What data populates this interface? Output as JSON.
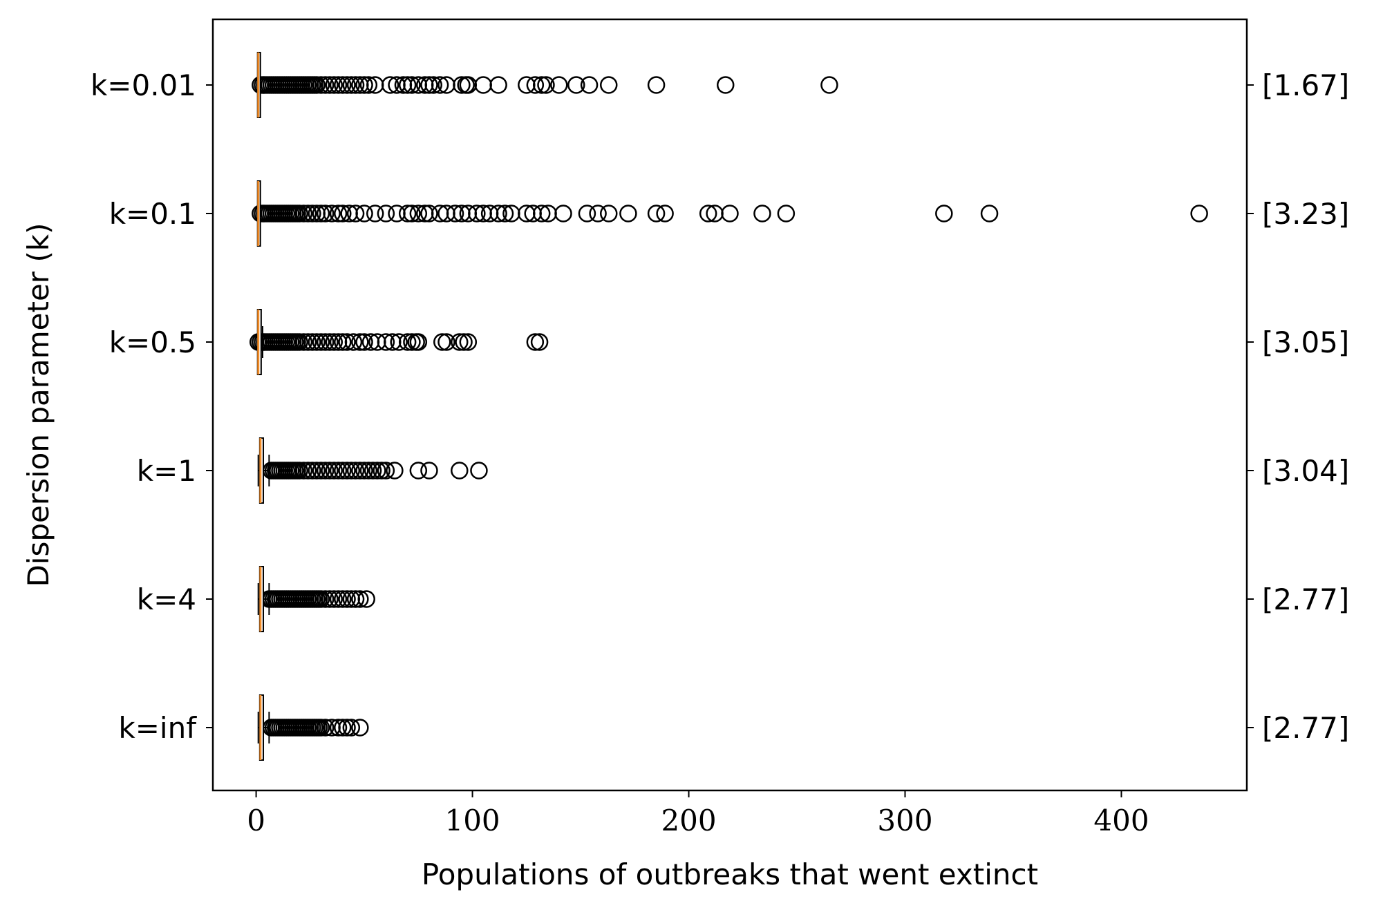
{
  "chart_data": {
    "type": "boxplot",
    "orientation": "horizontal",
    "xlabel": "Populations of outbreaks that went extinct",
    "ylabel": "Dispersion parameter (k)",
    "xlim": [
      -20,
      458
    ],
    "xticks": [
      0,
      100,
      200,
      300,
      400
    ],
    "grid": false,
    "colors": {
      "median": "#f08c28",
      "box": "#000000",
      "outlier": "#000000"
    },
    "categories": [
      "k=0.01",
      "k=0.1",
      "k=0.5",
      "k=1",
      "k=4",
      "k=inf"
    ],
    "right_labels": [
      "[1.67]",
      "[3.23]",
      "[3.05]",
      "[3.04]",
      "[2.77]",
      "[2.77]"
    ],
    "series": [
      {
        "category": "k=0.01",
        "q1": 1,
        "median": 1,
        "q3": 1,
        "whisker_low": 1,
        "whisker_high": 1,
        "outliers": [
          2,
          3,
          4,
          5,
          6,
          7,
          8,
          9,
          10,
          11,
          12,
          13,
          14,
          15,
          16,
          17,
          18,
          19,
          20,
          21,
          22,
          23,
          24,
          25,
          26,
          27,
          28,
          30,
          32,
          34,
          36,
          38,
          40,
          42,
          44,
          46,
          48,
          50,
          52,
          55,
          62,
          65,
          68,
          70,
          72,
          75,
          78,
          80,
          82,
          85,
          88,
          95,
          97,
          98,
          105,
          112,
          125,
          129,
          132,
          134,
          140,
          148,
          154,
          163,
          185,
          217,
          265
        ]
      },
      {
        "category": "k=0.1",
        "q1": 1,
        "median": 1,
        "q3": 1,
        "whisker_low": 1,
        "whisker_high": 1,
        "outliers": [
          2,
          3,
          4,
          5,
          6,
          7,
          8,
          9,
          10,
          11,
          12,
          13,
          14,
          15,
          16,
          17,
          18,
          19,
          20,
          22,
          24,
          26,
          28,
          30,
          32,
          35,
          38,
          40,
          43,
          46,
          50,
          55,
          60,
          65,
          70,
          72,
          75,
          78,
          80,
          85,
          88,
          92,
          95,
          98,
          102,
          105,
          108,
          112,
          115,
          118,
          125,
          128,
          132,
          135,
          142,
          153,
          158,
          163,
          172,
          185,
          189,
          209,
          212,
          219,
          234,
          245,
          318,
          339,
          436
        ]
      },
      {
        "category": "k=0.5",
        "q1": 1,
        "median": 1,
        "q3": 2,
        "whisker_low": 1,
        "whisker_high": 3,
        "outliers": [
          1,
          2,
          3,
          4,
          5,
          6,
          7,
          8,
          9,
          10,
          11,
          12,
          13,
          14,
          15,
          16,
          17,
          18,
          19,
          20,
          22,
          24,
          26,
          28,
          30,
          32,
          34,
          36,
          38,
          40,
          42,
          45,
          48,
          50,
          53,
          56,
          60,
          63,
          66,
          70,
          72,
          74,
          75,
          86,
          88,
          94,
          96,
          98,
          129,
          131
        ]
      },
      {
        "category": "k=1",
        "q1": 2,
        "median": 2,
        "q3": 3,
        "whisker_low": 1,
        "whisker_high": 6,
        "outliers": [
          7,
          8,
          9,
          10,
          11,
          12,
          13,
          14,
          15,
          16,
          17,
          18,
          19,
          20,
          22,
          24,
          26,
          28,
          30,
          32,
          34,
          36,
          38,
          40,
          42,
          44,
          46,
          48,
          50,
          52,
          54,
          56,
          58,
          60,
          64,
          75,
          80,
          94,
          103
        ]
      },
      {
        "category": "k=4",
        "q1": 2,
        "median": 2,
        "q3": 3,
        "whisker_low": 1,
        "whisker_high": 6,
        "outliers": [
          6,
          7,
          8,
          9,
          10,
          11,
          12,
          13,
          14,
          15,
          16,
          17,
          18,
          19,
          20,
          21,
          22,
          23,
          24,
          25,
          26,
          27,
          28,
          29,
          30,
          32,
          34,
          36,
          38,
          40,
          42,
          44,
          46,
          48,
          51
        ]
      },
      {
        "category": "k=inf",
        "q1": 2,
        "median": 2,
        "q3": 3,
        "whisker_low": 1,
        "whisker_high": 6,
        "outliers": [
          7,
          8,
          9,
          10,
          11,
          12,
          13,
          14,
          15,
          16,
          17,
          18,
          19,
          20,
          21,
          22,
          23,
          24,
          25,
          26,
          27,
          28,
          29,
          30,
          32,
          35,
          38,
          40,
          42,
          44,
          48
        ]
      }
    ]
  }
}
